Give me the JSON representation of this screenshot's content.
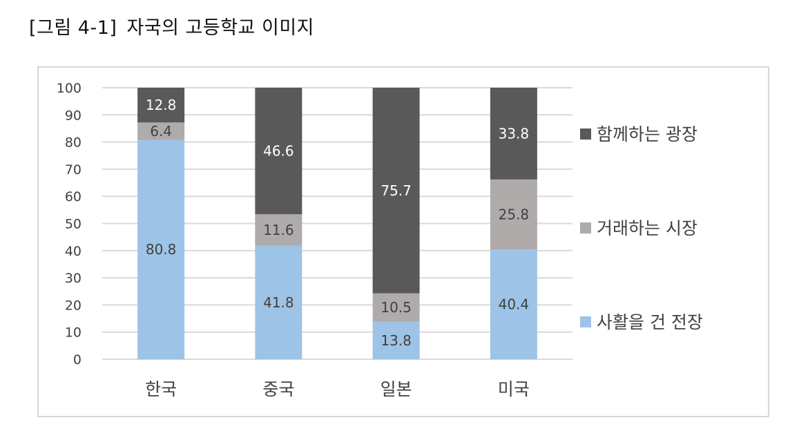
{
  "figure": {
    "number": "[그림 4-1]",
    "caption": "자국의 고등학교 이미지"
  },
  "chart_data": {
    "type": "bar",
    "stacked": true,
    "categories": [
      "한국",
      "중국",
      "일본",
      "미국"
    ],
    "series": [
      {
        "name": "사활을 건 전장",
        "values": [
          80.8,
          41.8,
          13.8,
          40.4
        ],
        "color": "#9dc3e6",
        "label_color": "#404040"
      },
      {
        "name": "거래하는 시장",
        "values": [
          6.4,
          11.6,
          10.5,
          25.8
        ],
        "color": "#afabab",
        "label_color": "#404040"
      },
      {
        "name": "함께하는 광장",
        "values": [
          12.8,
          46.6,
          75.7,
          33.8
        ],
        "color": "#595959",
        "label_color": "#ffffff"
      }
    ],
    "yticks": [
      "0",
      "10",
      "20",
      "30",
      "40",
      "50",
      "60",
      "70",
      "80",
      "90",
      "100"
    ],
    "ylim": [
      0,
      100
    ],
    "grid": true,
    "legend_position": "right"
  }
}
